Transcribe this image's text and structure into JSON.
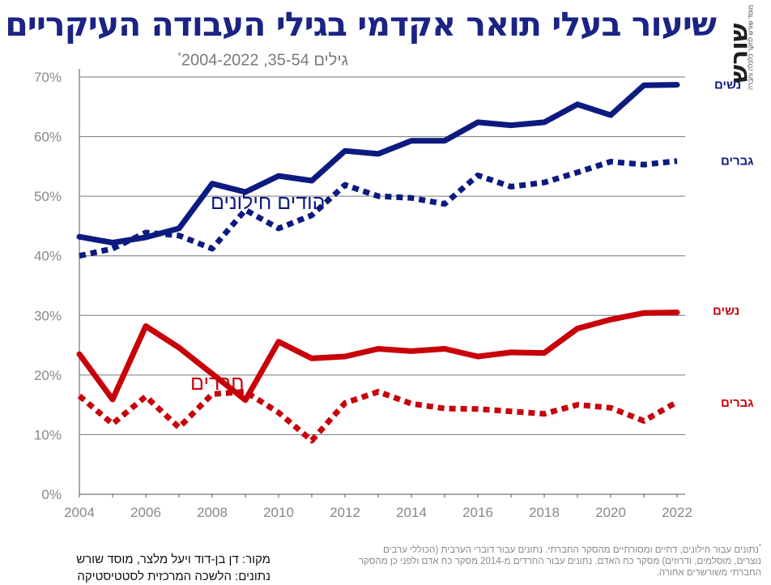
{
  "header": {
    "title": "שיעור בעלי תואר אקדמי בגילי העבודה העיקריים",
    "subtitle": "גילים 35-54, 2004-2022",
    "subtitle_mark": "*"
  },
  "logo": {
    "word": "שורש",
    "tagline": "מוסד שורש לחקר כלכלה וחברה"
  },
  "chart_data": {
    "type": "line",
    "x": [
      2004,
      2005,
      2006,
      2007,
      2008,
      2009,
      2010,
      2011,
      2012,
      2013,
      2014,
      2015,
      2016,
      2017,
      2018,
      2019,
      2020,
      2021,
      2022
    ],
    "xticks": [
      "2004",
      "2006",
      "2008",
      "2010",
      "2012",
      "2014",
      "2016",
      "2018",
      "2020",
      "2022"
    ],
    "yticks": [
      "0%",
      "10%",
      "20%",
      "30%",
      "40%",
      "50%",
      "60%",
      "70%"
    ],
    "ylim": [
      0,
      70
    ],
    "grid": true,
    "series": [
      {
        "group": "יהודים חילונים",
        "name": "נשים",
        "style": "solid",
        "color": "#0d1a80",
        "values": [
          43.2,
          42.2,
          43.1,
          44.6,
          52.1,
          50.7,
          53.4,
          52.6,
          57.6,
          57.1,
          59.3,
          59.3,
          62.4,
          61.9,
          62.4,
          65.4,
          63.6,
          68.6,
          68.7
        ]
      },
      {
        "group": "יהודים חילונים",
        "name": "גברים",
        "style": "dashed",
        "color": "#0d1a80",
        "values": [
          40.0,
          41.2,
          43.9,
          43.4,
          41.2,
          47.7,
          44.6,
          46.8,
          51.9,
          50.0,
          49.7,
          48.7,
          53.5,
          51.6,
          52.3,
          54.0,
          55.8,
          55.3,
          55.9
        ]
      },
      {
        "group": "חרדים",
        "name": "נשים",
        "style": "solid",
        "color": "#c8000a",
        "values": [
          23.5,
          15.9,
          28.2,
          24.6,
          20.2,
          15.8,
          25.6,
          22.8,
          23.1,
          24.4,
          24.0,
          24.4,
          23.1,
          23.8,
          23.7,
          27.8,
          29.3,
          30.4,
          30.5
        ]
      },
      {
        "group": "חרדים",
        "name": "גברים",
        "style": "dashed",
        "color": "#c8000a",
        "values": [
          16.5,
          11.8,
          16.4,
          11.2,
          16.8,
          17.2,
          13.7,
          9.0,
          15.3,
          17.2,
          15.2,
          14.4,
          14.3,
          13.9,
          13.5,
          15.0,
          14.5,
          12.3,
          15.5
        ]
      }
    ],
    "group_labels": [
      "יהודים חילונים",
      "חרדים"
    ],
    "colors": {
      "secular": "#0d1a80",
      "haredi": "#c8000a",
      "grid": "#777777",
      "tick": "#888888"
    }
  },
  "source": {
    "line1": "מקור:  דן בן-דוד ויעל מלצר, מוסד שורש",
    "line2": "נתונים: הלשכה המרכזית לסטטיסטיקה"
  },
  "footnote": {
    "mark": "*",
    "text": "נתונים עבור חילונים, דתיים ומסורתיים מהסקר החברתי. נתונים עבור דוברי הערבית (הכוללי ערבים נוצרים, מוסלמים, ודרוזים) מסקר כח האדם. נתונים עבור החרדים מ-2014 מסקר כח אדם ולפני כן מהסקר החברתי משורשרים אחורה."
  }
}
